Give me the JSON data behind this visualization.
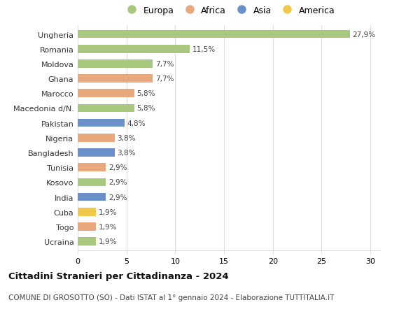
{
  "countries": [
    "Ungheria",
    "Romania",
    "Moldova",
    "Ghana",
    "Marocco",
    "Macedonia d/N.",
    "Pakistan",
    "Nigeria",
    "Bangladesh",
    "Tunisia",
    "Kosovo",
    "India",
    "Cuba",
    "Togo",
    "Ucraina"
  ],
  "values": [
    27.9,
    11.5,
    7.7,
    7.7,
    5.8,
    5.8,
    4.8,
    3.8,
    3.8,
    2.9,
    2.9,
    2.9,
    1.9,
    1.9,
    1.9
  ],
  "labels": [
    "27,9%",
    "11,5%",
    "7,7%",
    "7,7%",
    "5,8%",
    "5,8%",
    "4,8%",
    "3,8%",
    "3,8%",
    "2,9%",
    "2,9%",
    "2,9%",
    "1,9%",
    "1,9%",
    "1,9%"
  ],
  "continents": [
    "Europa",
    "Europa",
    "Europa",
    "Africa",
    "Africa",
    "Europa",
    "Asia",
    "Africa",
    "Asia",
    "Africa",
    "Europa",
    "Asia",
    "America",
    "Africa",
    "Europa"
  ],
  "continent_colors": {
    "Europa": "#a8c87e",
    "Africa": "#e8a87c",
    "Asia": "#6b8fc9",
    "America": "#f0c94a"
  },
  "legend_order": [
    "Europa",
    "Africa",
    "Asia",
    "America"
  ],
  "title": "Cittadini Stranieri per Cittadinanza - 2024",
  "subtitle": "COMUNE DI GROSOTTO (SO) - Dati ISTAT al 1° gennaio 2024 - Elaborazione TUTTITALIA.IT",
  "xlim": [
    0,
    31
  ],
  "xticks": [
    0,
    5,
    10,
    15,
    20,
    25,
    30
  ],
  "background_color": "#ffffff",
  "grid_color": "#dddddd",
  "bar_height": 0.55
}
